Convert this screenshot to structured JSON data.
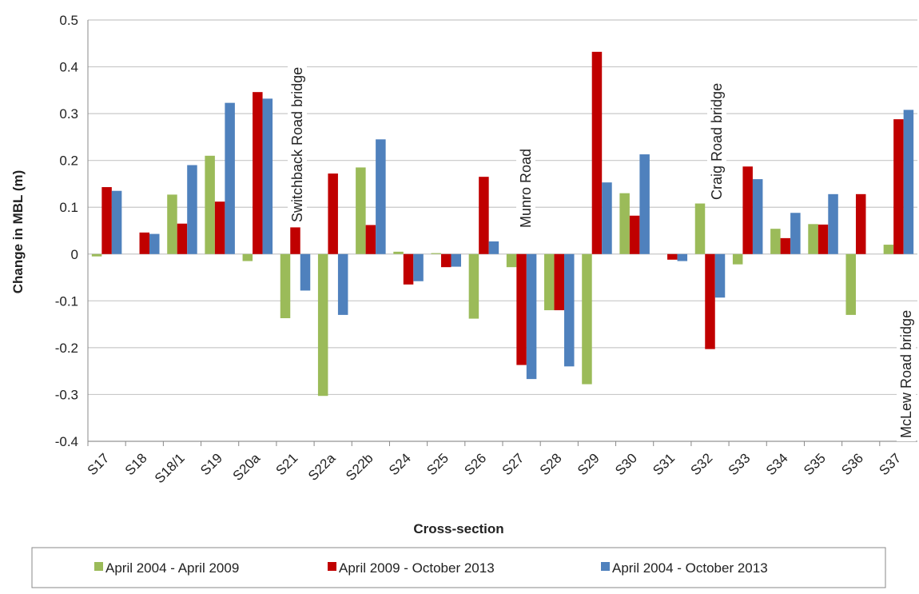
{
  "chart_data": {
    "type": "bar",
    "x_label": "Cross-section",
    "y_label": "Change in MBL (m)",
    "categories": [
      "S17",
      "S18",
      "S18/1",
      "S19",
      "S20a",
      "S21",
      "S22a",
      "S22b",
      "S24",
      "S25",
      "S26",
      "S27",
      "S28",
      "S29",
      "S30",
      "S31",
      "S32",
      "S33",
      "S34",
      "S35",
      "S36",
      "S37"
    ],
    "series": [
      {
        "name": "April 2004 - April 2009",
        "color": "#9bbb59",
        "values": [
          -0.005,
          0,
          0.127,
          0.21,
          -0.015,
          -0.137,
          -0.303,
          0.185,
          0.005,
          0.002,
          -0.138,
          -0.028,
          -0.12,
          -0.278,
          0.13,
          0,
          0.108,
          -0.022,
          0.054,
          0.064,
          -0.13,
          0.02
        ]
      },
      {
        "name": "April 2009 - October 2013",
        "color": "#c00000",
        "values": [
          0.143,
          0.046,
          0.065,
          0.112,
          0.346,
          0.057,
          0.172,
          0.062,
          -0.065,
          -0.028,
          0.165,
          -0.237,
          -0.12,
          0.432,
          0.082,
          -0.012,
          -0.203,
          0.187,
          0.034,
          0.063,
          0.128,
          0.288
        ]
      },
      {
        "name": "April 2004 - October 2013",
        "color": "#4f81bd",
        "values": [
          0.135,
          0.043,
          0.19,
          0.323,
          0.332,
          -0.078,
          -0.13,
          0.245,
          -0.058,
          -0.027,
          0.027,
          -0.267,
          -0.24,
          0.153,
          0.213,
          -0.015,
          -0.093,
          0.16,
          0.088,
          0.128,
          null,
          0.308
        ]
      }
    ],
    "ylim": [
      -0.4,
      0.5
    ],
    "yticks": [
      -0.4,
      -0.3,
      -0.2,
      -0.1,
      0,
      0.1,
      0.2,
      0.3,
      0.4,
      0.5
    ],
    "grid": true,
    "legend": "bottom",
    "annotations": [
      "Switchback Road bridge",
      "Munro Road",
      "Craig Road bridge",
      "McLew Road bridge"
    ]
  }
}
